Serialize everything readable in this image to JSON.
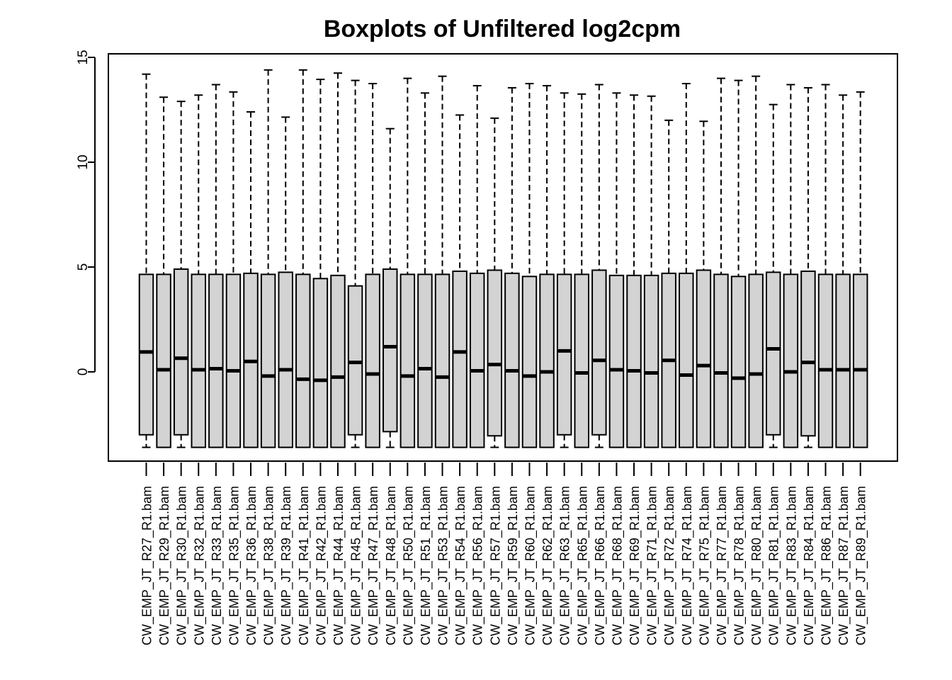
{
  "chart_data": {
    "type": "boxplot",
    "title": "Boxplots of Unfiltered log2cpm",
    "xlabel": "",
    "ylabel": "",
    "ylim": [
      -4.3,
      15.1
    ],
    "yticks": [
      0,
      5,
      10,
      15
    ],
    "yticks_labels": [
      "0",
      "5",
      "10",
      "15"
    ],
    "box_fill": "#d3d3d3",
    "line_color": "#000000",
    "categories": [
      "CW_EMP_JT_R27_R1.bam",
      "CW_EMP_JT_R29_R1.bam",
      "CW_EMP_JT_R30_R1.bam",
      "CW_EMP_JT_R32_R1.bam",
      "CW_EMP_JT_R33_R1.bam",
      "CW_EMP_JT_R35_R1.bam",
      "CW_EMP_JT_R36_R1.bam",
      "CW_EMP_JT_R38_R1.bam",
      "CW_EMP_JT_R39_R1.bam",
      "CW_EMP_JT_R41_R1.bam",
      "CW_EMP_JT_R42_R1.bam",
      "CW_EMP_JT_R44_R1.bam",
      "CW_EMP_JT_R45_R1.bam",
      "CW_EMP_JT_R47_R1.bam",
      "CW_EMP_JT_R48_R1.bam",
      "CW_EMP_JT_R50_R1.bam",
      "CW_EMP_JT_R51_R1.bam",
      "CW_EMP_JT_R53_R1.bam",
      "CW_EMP_JT_R54_R1.bam",
      "CW_EMP_JT_R56_R1.bam",
      "CW_EMP_JT_R57_R1.bam",
      "CW_EMP_JT_R59_R1.bam",
      "CW_EMP_JT_R60_R1.bam",
      "CW_EMP_JT_R62_R1.bam",
      "CW_EMP_JT_R63_R1.bam",
      "CW_EMP_JT_R65_R1.bam",
      "CW_EMP_JT_R66_R1.bam",
      "CW_EMP_JT_R68_R1.bam",
      "CW_EMP_JT_R69_R1.bam",
      "CW_EMP_JT_R71_R1.bam",
      "CW_EMP_JT_R72_R1.bam",
      "CW_EMP_JT_R74_R1.bam",
      "CW_EMP_JT_R75_R1.bam",
      "CW_EMP_JT_R77_R1.bam",
      "CW_EMP_JT_R78_R1.bam",
      "CW_EMP_JT_R80_R1.bam",
      "CW_EMP_JT_R81_R1.bam",
      "CW_EMP_JT_R83_R1.bam",
      "CW_EMP_JT_R84_R1.bam",
      "CW_EMP_JT_R86_R1.bam",
      "CW_EMP_JT_R87_R1.bam",
      "CW_EMP_JT_R89_R1.bam"
    ],
    "whisker_low": [
      -3.6,
      -3.6,
      -3.6,
      -3.6,
      -3.6,
      -3.6,
      -3.6,
      -3.6,
      -3.6,
      -3.6,
      -3.6,
      -3.6,
      -3.6,
      -3.6,
      -3.6,
      -3.6,
      -3.6,
      -3.6,
      -3.6,
      -3.6,
      -3.6,
      -3.6,
      -3.6,
      -3.6,
      -3.6,
      -3.6,
      -3.6,
      -3.6,
      -3.6,
      -3.6,
      -3.6,
      -3.6,
      -3.6,
      -3.6,
      -3.6,
      -3.6,
      -3.6,
      -3.6,
      -3.6,
      -3.6,
      -3.6,
      -3.6
    ],
    "q1": [
      -3.0,
      -3.6,
      -3.0,
      -3.6,
      -3.6,
      -3.6,
      -3.6,
      -3.6,
      -3.6,
      -3.6,
      -3.6,
      -3.6,
      -3.0,
      -3.6,
      -2.85,
      -3.6,
      -3.6,
      -3.6,
      -3.6,
      -3.6,
      -3.05,
      -3.6,
      -3.6,
      -3.6,
      -3.0,
      -3.6,
      -3.0,
      -3.6,
      -3.6,
      -3.6,
      -3.6,
      -3.6,
      -3.6,
      -3.6,
      -3.6,
      -3.6,
      -3.0,
      -3.6,
      -3.05,
      -3.6,
      -3.6,
      -3.6
    ],
    "median": [
      0.95,
      0.1,
      0.65,
      0.1,
      0.15,
      0.05,
      0.5,
      -0.2,
      0.1,
      -0.35,
      -0.4,
      -0.25,
      0.45,
      -0.1,
      1.2,
      -0.2,
      0.15,
      -0.25,
      0.95,
      0.05,
      0.35,
      0.05,
      -0.2,
      0.0,
      1.0,
      -0.05,
      0.55,
      0.1,
      0.05,
      -0.05,
      0.55,
      -0.15,
      0.3,
      -0.05,
      -0.3,
      -0.1,
      1.1,
      0.0,
      0.45,
      0.1,
      0.1,
      0.1
    ],
    "q3": [
      4.65,
      4.65,
      4.9,
      4.65,
      4.65,
      4.65,
      4.7,
      4.65,
      4.75,
      4.65,
      4.45,
      4.6,
      4.1,
      4.65,
      4.9,
      4.65,
      4.65,
      4.65,
      4.8,
      4.7,
      4.85,
      4.7,
      4.55,
      4.65,
      4.65,
      4.65,
      4.85,
      4.6,
      4.6,
      4.6,
      4.7,
      4.7,
      4.85,
      4.65,
      4.55,
      4.65,
      4.75,
      4.65,
      4.8,
      4.65,
      4.65,
      4.65
    ],
    "whisker_high": [
      14.2,
      13.1,
      12.9,
      13.2,
      13.7,
      13.35,
      12.4,
      14.4,
      12.15,
      14.4,
      13.95,
      14.25,
      13.9,
      13.75,
      11.6,
      14.0,
      13.3,
      14.1,
      12.25,
      13.65,
      12.1,
      13.55,
      13.75,
      13.65,
      13.3,
      13.25,
      13.7,
      13.3,
      13.2,
      13.15,
      12.0,
      13.75,
      11.95,
      14.0,
      13.9,
      14.1,
      12.75,
      13.7,
      13.55,
      13.7,
      13.2,
      13.35
    ]
  }
}
